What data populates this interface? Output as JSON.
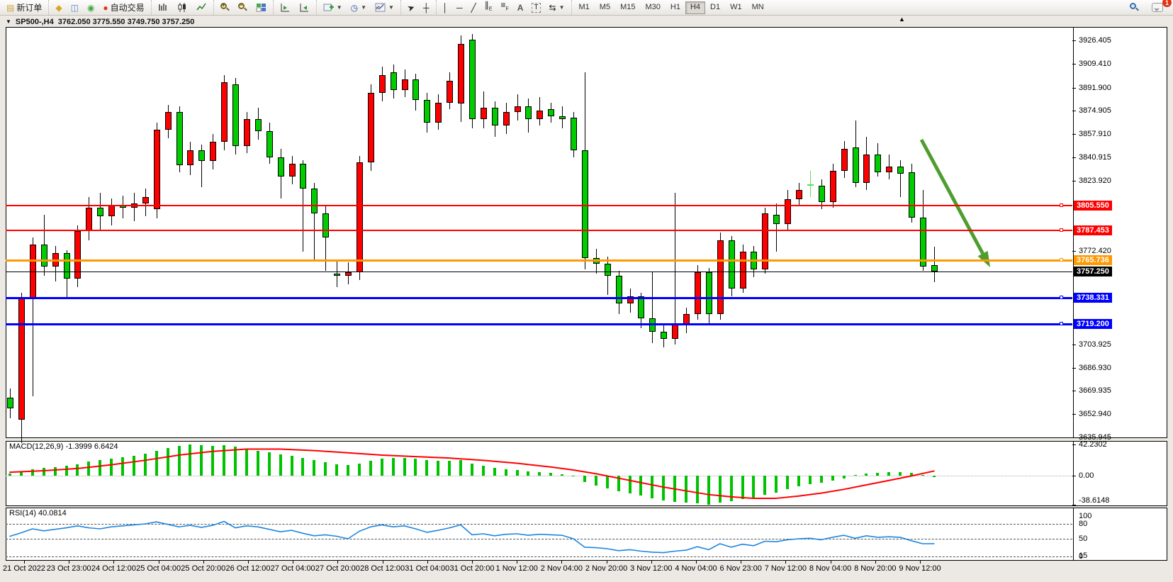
{
  "toolbar": {
    "new_order_label": "新订单",
    "auto_trading_label": "自动交易",
    "timeframes": [
      "M1",
      "M5",
      "M15",
      "M30",
      "H1",
      "H4",
      "D1",
      "W1",
      "MN"
    ],
    "active_timeframe": "H4",
    "chat_badge_count": "1",
    "icons": [
      "market-watch",
      "data-window",
      "navigator",
      "chart-bars",
      "chart-candles",
      "chart-line",
      "zoom-in",
      "zoom-out",
      "tile-windows",
      "auto-scroll",
      "chart-shift",
      "new-chart",
      "periods",
      "indicators",
      "cursor",
      "crosshair",
      "vertical-line",
      "horizontal-line",
      "trendline",
      "equidistant-channel",
      "fibonacci",
      "text",
      "text-label",
      "arrows",
      "search",
      "chat"
    ]
  },
  "window": {
    "symbol_period": "SP500-,H4",
    "ohlc_text": "3762.050 3775.550 3749.750 3757.250"
  },
  "chart_data": {
    "type": "candlestick",
    "symbol": "SP500-",
    "timeframe": "H4",
    "title": "SP500-,H4 3762.050 3775.550 3749.750 3757.250",
    "current_bar": {
      "open": 3762.05,
      "high": 3775.55,
      "low": 3749.75,
      "close": 3757.25
    },
    "price_range_visible": [
      3635.945,
      3926.405
    ],
    "up_color": "#ff0000",
    "down_color": "#00cc00",
    "candles_ohlc": [
      [
        3665,
        3672,
        3650,
        3657
      ],
      [
        3649,
        3742,
        3632,
        3738
      ],
      [
        3738,
        3782,
        3666,
        3777
      ],
      [
        3777,
        3799,
        3754,
        3761
      ],
      [
        3761,
        3776,
        3750,
        3771
      ],
      [
        3771,
        3773,
        3737,
        3752
      ],
      [
        3752,
        3791,
        3746,
        3787
      ],
      [
        3787,
        3812,
        3780,
        3804
      ],
      [
        3804,
        3815,
        3787,
        3798
      ],
      [
        3798,
        3811,
        3791,
        3806
      ],
      [
        3806,
        3813,
        3796,
        3804
      ],
      [
        3804,
        3815,
        3794,
        3807
      ],
      [
        3807,
        3818,
        3798,
        3812
      ],
      [
        3803,
        3866,
        3796,
        3861
      ],
      [
        3861,
        3879,
        3855,
        3874
      ],
      [
        3874,
        3878,
        3830,
        3835
      ],
      [
        3835,
        3852,
        3828,
        3846
      ],
      [
        3846,
        3850,
        3819,
        3838
      ],
      [
        3838,
        3858,
        3832,
        3852
      ],
      [
        3852,
        3901,
        3846,
        3896
      ],
      [
        3894,
        3899,
        3843,
        3849
      ],
      [
        3849,
        3874,
        3844,
        3869
      ],
      [
        3869,
        3877,
        3854,
        3860
      ],
      [
        3860,
        3866,
        3836,
        3841
      ],
      [
        3841,
        3847,
        3811,
        3827
      ],
      [
        3827,
        3842,
        3821,
        3836
      ],
      [
        3836,
        3839,
        3772,
        3818
      ],
      [
        3818,
        3822,
        3766,
        3800
      ],
      [
        3800,
        3806,
        3758,
        3782
      ],
      [
        3756,
        3766,
        3746,
        3754
      ],
      [
        3754,
        3764,
        3748,
        3757
      ],
      [
        3757,
        3842,
        3751,
        3837
      ],
      [
        3837,
        3894,
        3831,
        3888
      ],
      [
        3888,
        3907,
        3882,
        3901
      ],
      [
        3903,
        3909,
        3884,
        3890
      ],
      [
        3890,
        3905,
        3885,
        3898
      ],
      [
        3898,
        3902,
        3875,
        3883
      ],
      [
        3883,
        3888,
        3859,
        3866
      ],
      [
        3866,
        3887,
        3861,
        3881
      ],
      [
        3881,
        3903,
        3876,
        3897
      ],
      [
        3880,
        3930,
        3867,
        3924
      ],
      [
        3927,
        3931,
        3862,
        3869
      ],
      [
        3869,
        3889,
        3862,
        3877
      ],
      [
        3877,
        3882,
        3856,
        3864
      ],
      [
        3864,
        3881,
        3858,
        3874
      ],
      [
        3874,
        3887,
        3868,
        3878
      ],
      [
        3878,
        3884,
        3859,
        3869
      ],
      [
        3869,
        3885,
        3864,
        3875
      ],
      [
        3876,
        3881,
        3866,
        3871
      ],
      [
        3871,
        3878,
        3862,
        3869
      ],
      [
        3870,
        3874,
        3841,
        3846
      ],
      [
        3846,
        3903,
        3759,
        3767
      ],
      [
        3767,
        3774,
        3756,
        3763
      ],
      [
        3763,
        3768,
        3740,
        3754
      ],
      [
        3754,
        3758,
        3726,
        3734
      ],
      [
        3734,
        3745,
        3727,
        3739
      ],
      [
        3739,
        3742,
        3716,
        3723
      ],
      [
        3723,
        3757,
        3705,
        3713
      ],
      [
        3713,
        3718,
        3702,
        3708
      ],
      [
        3708,
        3815,
        3704,
        3719
      ],
      [
        3719,
        3731,
        3712,
        3726
      ],
      [
        3726,
        3762,
        3722,
        3757
      ],
      [
        3757,
        3760,
        3719,
        3726
      ],
      [
        3726,
        3786,
        3722,
        3780
      ],
      [
        3780,
        3783,
        3739,
        3745
      ],
      [
        3745,
        3777,
        3742,
        3772
      ],
      [
        3772,
        3776,
        3753,
        3759
      ],
      [
        3759,
        3804,
        3756,
        3800
      ],
      [
        3799,
        3807,
        3772,
        3792
      ],
      [
        3792,
        3817,
        3788,
        3810
      ],
      [
        3810,
        3822,
        3806,
        3817
      ],
      [
        3821,
        3831,
        3812,
        3821
      ],
      [
        3820,
        3825,
        3803,
        3808
      ],
      [
        3808,
        3836,
        3804,
        3831
      ],
      [
        3831,
        3853,
        3826,
        3847
      ],
      [
        3848,
        3868,
        3819,
        3822
      ],
      [
        3822,
        3856,
        3817,
        3843
      ],
      [
        3843,
        3851,
        3827,
        3830
      ],
      [
        3830,
        3843,
        3825,
        3834
      ],
      [
        3834,
        3839,
        3812,
        3829
      ],
      [
        3830,
        3836,
        3793,
        3797
      ],
      [
        3797,
        3817,
        3758,
        3761
      ],
      [
        3762.05,
        3775.55,
        3749.75,
        3757.25
      ]
    ],
    "lime_doji_index": 71,
    "price_axis_ticks": [
      "3926.405",
      "3909.410",
      "3891.900",
      "3874.905",
      "3857.910",
      "3840.915",
      "3823.920",
      "3772.420",
      "3703.925",
      "3686.930",
      "3669.935",
      "3652.940",
      "3635.945"
    ],
    "horizontal_lines": [
      {
        "label": "3805.550",
        "price": 3805.55,
        "color": "#ff0000",
        "width": 2
      },
      {
        "label": "3787.453",
        "price": 3787.453,
        "color": "#ff0000",
        "width": 2
      },
      {
        "label": "3765.736",
        "price": 3765.736,
        "color": "#ff9900",
        "width": 3
      },
      {
        "label": "3757.250",
        "price": 3757.25,
        "color": "#000000",
        "width": 1,
        "is_current_price": true
      },
      {
        "label": "3738.331",
        "price": 3738.331,
        "color": "#0000ff",
        "width": 3
      },
      {
        "label": "3719.200",
        "price": 3719.2,
        "color": "#0000ff",
        "width": 3
      }
    ],
    "x_labels": [
      "21 Oct 2022",
      "23 Oct 23:00",
      "24 Oct 12:00",
      "25 Oct 04:00",
      "25 Oct 20:00",
      "26 Oct 12:00",
      "27 Oct 04:00",
      "27 Oct 20:00",
      "28 Oct 12:00",
      "31 Oct 04:00",
      "31 Oct 20:00",
      "1 Nov 12:00",
      "2 Nov 04:00",
      "2 Nov 20:00",
      "3 Nov 12:00",
      "4 Nov 04:00",
      "6 Nov 23:00",
      "7 Nov 12:00",
      "8 Nov 04:00",
      "8 Nov 20:00",
      "9 Nov 12:00"
    ],
    "annotation_arrow": {
      "from_xy": [
        1300,
        197
      ],
      "to_xy": [
        1397,
        377
      ],
      "color": "#4f9d2f"
    },
    "indicators": {
      "macd": {
        "label": "MACD(12,26,9)",
        "main_value": "-1.3999",
        "signal_value": "6.6424",
        "scale_labels": [
          "42.2302",
          "0.00",
          "-38.6148"
        ],
        "scale_max": 42.2302,
        "scale_min": -38.6148,
        "histogram_color": "#00c300",
        "signal_color": "#ff0000",
        "histogram": [
          3,
          5,
          9,
          11,
          12,
          14,
          16,
          19,
          21,
          23,
          25,
          27,
          30,
          34,
          37,
          40,
          42.2,
          41,
          40,
          41,
          39,
          36,
          34,
          32,
          29,
          27,
          24,
          21,
          18,
          16,
          15,
          17,
          20,
          23,
          24,
          24,
          23,
          21,
          20,
          20,
          21,
          17,
          14,
          11,
          9,
          8,
          6,
          5,
          4,
          2,
          -1,
          -8,
          -13,
          -17,
          -21,
          -23,
          -26,
          -30,
          -33,
          -35,
          -36,
          -37,
          -38.6,
          -36,
          -34,
          -31,
          -29,
          -25,
          -22,
          -18,
          -14,
          -11,
          -9,
          -6,
          -3,
          1,
          3,
          4,
          5,
          5,
          4,
          1,
          -1.4
        ],
        "signal_points": [
          [
            0,
            5
          ],
          [
            3,
            7
          ],
          [
            6,
            10
          ],
          [
            9,
            15
          ],
          [
            12,
            21
          ],
          [
            15,
            28
          ],
          [
            18,
            33
          ],
          [
            21,
            36
          ],
          [
            24,
            36
          ],
          [
            27,
            34
          ],
          [
            30,
            31
          ],
          [
            33,
            28
          ],
          [
            36,
            26
          ],
          [
            39,
            24
          ],
          [
            42,
            21
          ],
          [
            45,
            17
          ],
          [
            48,
            12
          ],
          [
            50,
            8
          ],
          [
            52,
            3
          ],
          [
            54,
            -3
          ],
          [
            56,
            -9
          ],
          [
            58,
            -15
          ],
          [
            60,
            -20
          ],
          [
            62,
            -25
          ],
          [
            64,
            -28
          ],
          [
            66,
            -30
          ],
          [
            68,
            -30
          ],
          [
            70,
            -27
          ],
          [
            72,
            -23
          ],
          [
            74,
            -18
          ],
          [
            76,
            -12
          ],
          [
            78,
            -6
          ],
          [
            80,
            0
          ],
          [
            82,
            6.64
          ]
        ]
      },
      "rsi": {
        "label": "RSI(14)",
        "value": "40.0814",
        "line_color": "#1e86e0",
        "scale_labels": [
          "100",
          "80",
          "50",
          "15",
          "0"
        ],
        "dashed_levels": [
          80,
          50,
          15
        ],
        "series": [
          55,
          62,
          70,
          66,
          69,
          72,
          76,
          72,
          70,
          74,
          76,
          78,
          80,
          84,
          79,
          74,
          77,
          73,
          77,
          85,
          72,
          76,
          74,
          69,
          64,
          67,
          61,
          56,
          58,
          55,
          50,
          65,
          74,
          78,
          74,
          76,
          70,
          63,
          67,
          72,
          78,
          58,
          60,
          56,
          59,
          60,
          57,
          59,
          58,
          57,
          50,
          33,
          32,
          30,
          26,
          28,
          25,
          23,
          22,
          25,
          27,
          34,
          28,
          40,
          33,
          39,
          36,
          45,
          44,
          48,
          50,
          51,
          48,
          53,
          57,
          51,
          56,
          53,
          54,
          53,
          46,
          40,
          40.08
        ]
      }
    }
  }
}
